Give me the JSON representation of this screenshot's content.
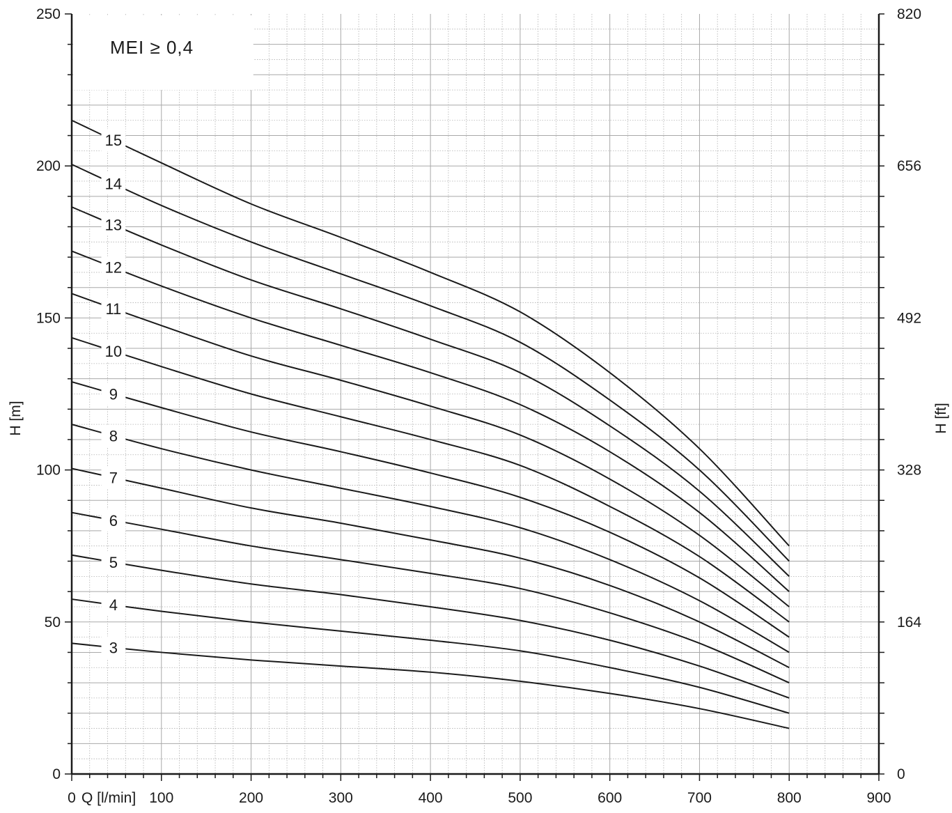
{
  "chart_data": {
    "type": "line",
    "annotation": "MEI ≥ 0,4",
    "xlabel": "Q [l/min]",
    "ylabel": "H [m]",
    "y2label": "H [ft]",
    "xlim": [
      0,
      900
    ],
    "ylim": [
      0,
      250
    ],
    "x_ticks": [
      "0",
      "100",
      "200",
      "300",
      "400",
      "500",
      "600",
      "700",
      "800",
      "900"
    ],
    "y_ticks": [
      "0",
      "50",
      "100",
      "150",
      "200",
      "250"
    ],
    "y2_ticks": [
      "0",
      "164",
      "328",
      "492",
      "656",
      "820"
    ],
    "grid": true,
    "x": [
      0,
      100,
      200,
      300,
      400,
      500,
      600,
      700,
      800
    ],
    "series": [
      {
        "name": "3",
        "values": [
          43,
          40,
          37.5,
          35.5,
          33.5,
          30.5,
          26.5,
          21.5,
          15
        ]
      },
      {
        "name": "4",
        "values": [
          57.5,
          53.5,
          50,
          47,
          44,
          40.5,
          35,
          28.5,
          20
        ]
      },
      {
        "name": "5",
        "values": [
          72,
          67,
          62.5,
          59,
          55,
          50.5,
          44,
          35.5,
          25
        ]
      },
      {
        "name": "6",
        "values": [
          86,
          80.5,
          75,
          70.5,
          66,
          61,
          53,
          43,
          30
        ]
      },
      {
        "name": "7",
        "values": [
          100.5,
          94,
          87.5,
          82.5,
          77,
          71,
          62,
          50,
          35
        ]
      },
      {
        "name": "8",
        "values": [
          115,
          107,
          100,
          94,
          88,
          81,
          70.5,
          57,
          40
        ]
      },
      {
        "name": "9",
        "values": [
          129,
          120.5,
          112.5,
          106,
          99,
          91,
          79.5,
          64.5,
          45
        ]
      },
      {
        "name": "10",
        "values": [
          143.5,
          134,
          125,
          117.5,
          110,
          101.5,
          88,
          71.5,
          50
        ]
      },
      {
        "name": "11",
        "values": [
          158,
          147.5,
          137.5,
          129.5,
          121,
          111.5,
          97,
          78.5,
          55
        ]
      },
      {
        "name": "12",
        "values": [
          172,
          160.5,
          150,
          141,
          132,
          121.5,
          106,
          86,
          60
        ]
      },
      {
        "name": "13",
        "values": [
          186.5,
          174,
          162.5,
          153,
          143,
          132,
          114.5,
          93,
          65
        ]
      },
      {
        "name": "14",
        "values": [
          200.5,
          187,
          175,
          164.5,
          154,
          142,
          123,
          100,
          70
        ]
      },
      {
        "name": "15",
        "values": [
          215,
          201,
          187.5,
          176.5,
          165,
          152,
          132,
          107,
          75
        ]
      }
    ]
  }
}
